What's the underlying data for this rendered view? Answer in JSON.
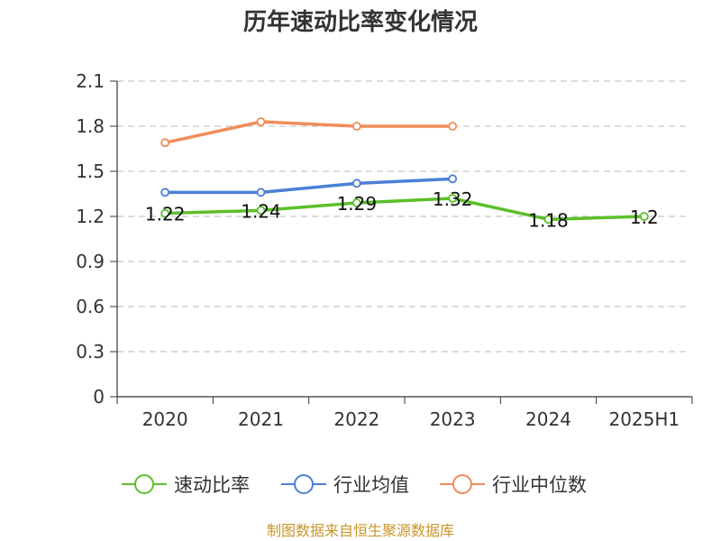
{
  "chart_data": {
    "type": "line",
    "title": "历年速动比率变化情况",
    "categories": [
      "2020",
      "2021",
      "2022",
      "2023",
      "2024",
      "2025H1"
    ],
    "ylim": [
      0,
      2.1
    ],
    "yticks": [
      "0",
      "0.3",
      "0.6",
      "0.9",
      "1.2",
      "1.5",
      "1.8",
      "2.1"
    ],
    "grid": true,
    "legend_position": "bottom",
    "series": [
      {
        "name": "速动比率",
        "color": "#5cbf2a",
        "values": [
          1.22,
          1.24,
          1.29,
          1.32,
          1.18,
          1.2
        ],
        "labels": [
          "1.22",
          "1.24",
          "1.29",
          "1.32",
          "1.18",
          "1.2"
        ]
      },
      {
        "name": "行业均值",
        "color": "#4a7fd6",
        "values": [
          1.36,
          1.36,
          1.42,
          1.45,
          null,
          null
        ]
      },
      {
        "name": "行业中位数",
        "color": "#f08c5a",
        "values": [
          1.69,
          1.83,
          1.8,
          1.8,
          null,
          null
        ]
      }
    ]
  },
  "source_note": "制图数据来自恒生聚源数据库"
}
